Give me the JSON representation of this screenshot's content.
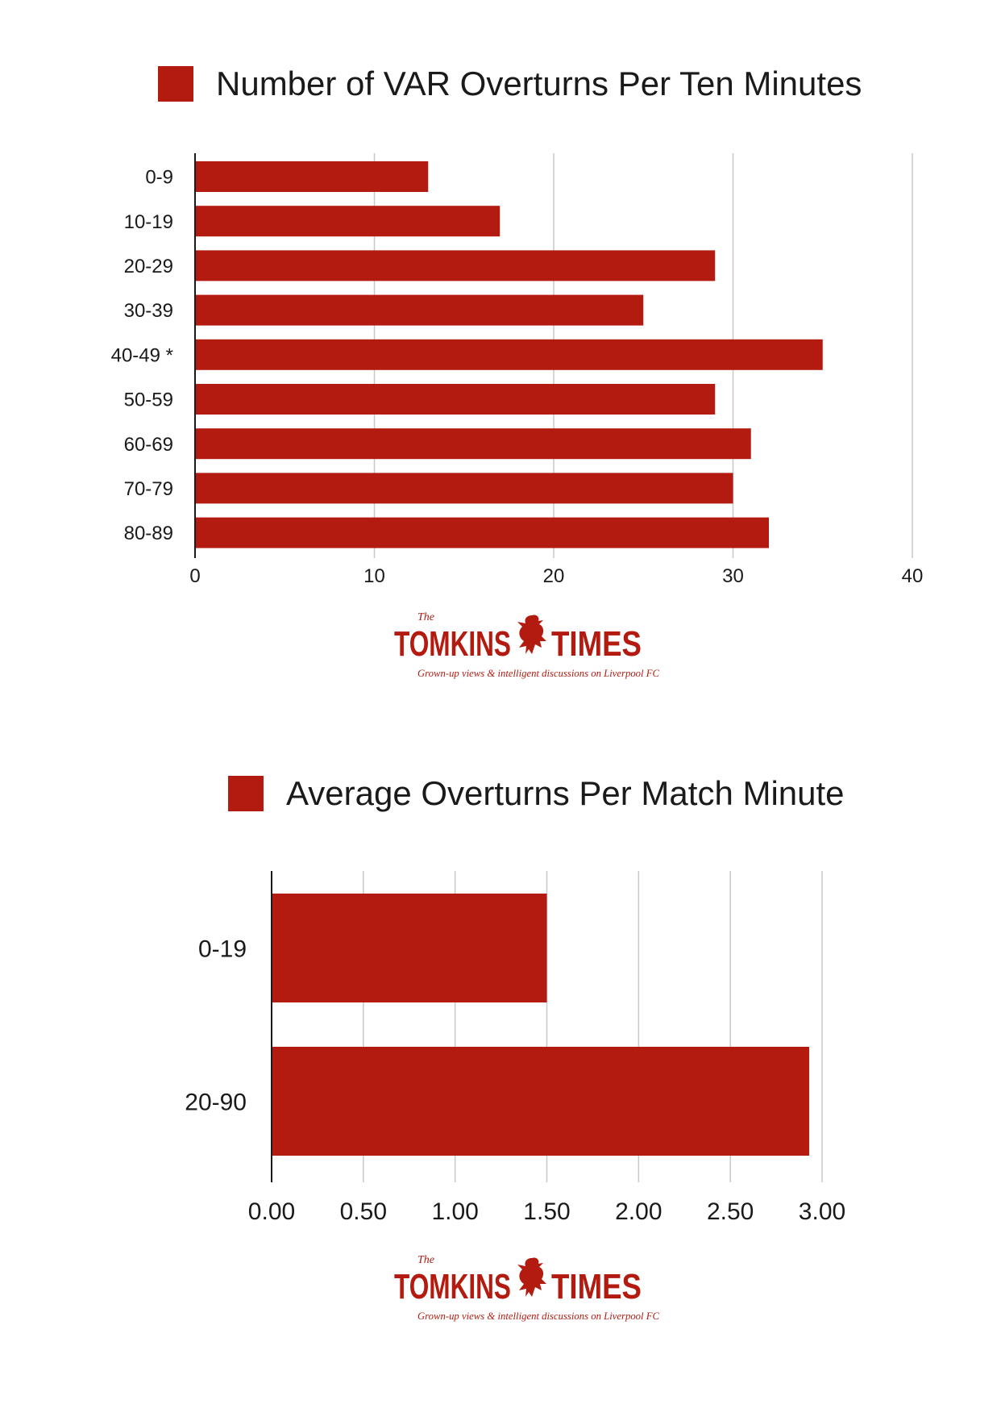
{
  "colors": {
    "bar": "#b31b10",
    "grid": "#c8c8c8",
    "axis": "#1a1a1a",
    "text": "#1a1a1a",
    "logo": "#b31b10"
  },
  "logo": {
    "the": "The",
    "left_word": "TOMKINS",
    "right_word": "TIMES",
    "tagline": "Grown-up views & intelligent discussions on Liverpool FC",
    "icon": "liverbird-icon"
  },
  "chart_data": [
    {
      "type": "bar",
      "orientation": "horizontal",
      "title": "Number of VAR Overturns Per Ten Minutes",
      "legend_position": "top",
      "categories": [
        "0-9",
        "10-19",
        "20-29",
        "30-39",
        "40-49 *",
        "50-59",
        "60-69",
        "70-79",
        "80-89"
      ],
      "values": [
        13,
        17,
        29,
        25,
        35,
        29,
        31,
        30,
        32
      ],
      "xlim": [
        0,
        40
      ],
      "ticks": [
        "0",
        "10",
        "20",
        "30",
        "40"
      ],
      "tick_values": [
        0,
        10,
        20,
        30,
        40
      ],
      "grid": true
    },
    {
      "type": "bar",
      "orientation": "horizontal",
      "title": "Average Overturns Per Match Minute",
      "legend_position": "top",
      "categories": [
        "0-19",
        "20-90"
      ],
      "values": [
        1.5,
        2.93
      ],
      "xlim": [
        0,
        3.0
      ],
      "ticks": [
        "0.00",
        "0.50",
        "1.00",
        "1.50",
        "2.00",
        "2.50",
        "3.00"
      ],
      "tick_values": [
        0,
        0.5,
        1.0,
        1.5,
        2.0,
        2.5,
        3.0
      ],
      "grid": true
    }
  ]
}
